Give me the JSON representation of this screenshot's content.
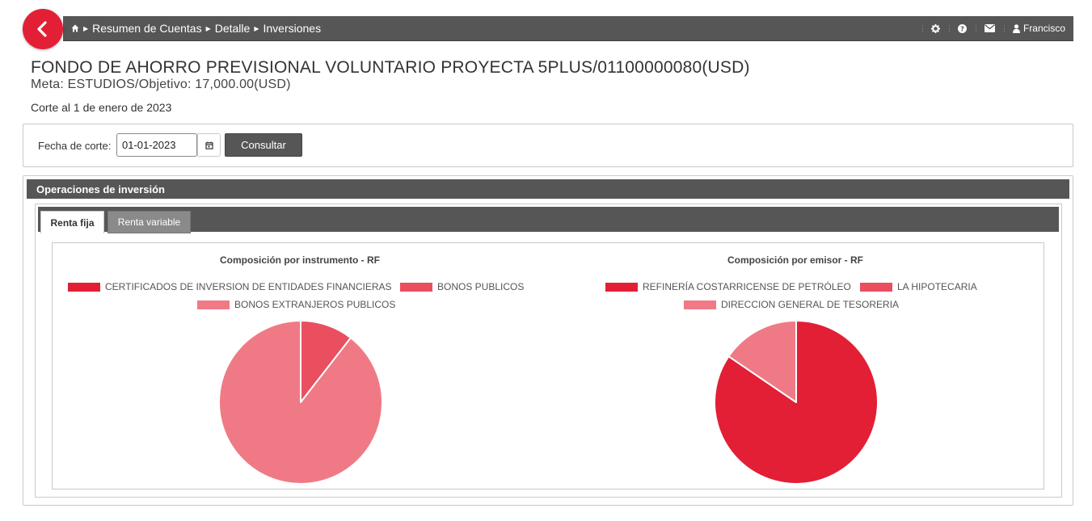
{
  "nav": {
    "breadcrumb": [
      "Resumen de Cuentas",
      "Detalle",
      "Inversiones"
    ],
    "user": "Francisco"
  },
  "header": {
    "title": "FONDO DE AHORRO PREVISIONAL VOLUNTARIO PROYECTA 5PLUS/01100000080(USD)",
    "meta": "Meta: ESTUDIOS/Objetivo: 17,000.00(USD)",
    "corte": "Corte al 1 de enero de 2023"
  },
  "query": {
    "label": "Fecha de corte:",
    "date_value": "01-01-2023",
    "button": "Consultar"
  },
  "panel": {
    "title": "Operaciones de inversión",
    "tabs": [
      {
        "label": "Renta fija",
        "active": true
      },
      {
        "label": "Renta variable",
        "active": false
      }
    ]
  },
  "colors": {
    "accent": "#e21f35",
    "bar": "#575656",
    "slice_1": "#e21f35",
    "slice_2": "#e94f5f",
    "slice_3": "#ef7a86"
  },
  "chart_data": [
    {
      "type": "pie",
      "title": "Composición por instrumento - RF",
      "legend": "top",
      "slices": [
        {
          "label": "CERTIFICADOS DE INVERSION DE ENTIDADES FINANCIERAS",
          "value": 0
        },
        {
          "label": "BONOS PUBLICOS",
          "value": 10.5
        },
        {
          "label": "BONOS EXTRANJEROS PUBLICOS",
          "value": 89.5
        }
      ]
    },
    {
      "type": "pie",
      "title": "Composición por emisor - RF",
      "legend": "top",
      "slices": [
        {
          "label": "REFINERÍA COSTARRICENSE DE PETRÓLEO",
          "value": 84.5
        },
        {
          "label": "LA HIPOTECARIA",
          "value": 0
        },
        {
          "label": "DIRECCION GENERAL DE TESORERIA",
          "value": 15.5
        }
      ]
    }
  ]
}
